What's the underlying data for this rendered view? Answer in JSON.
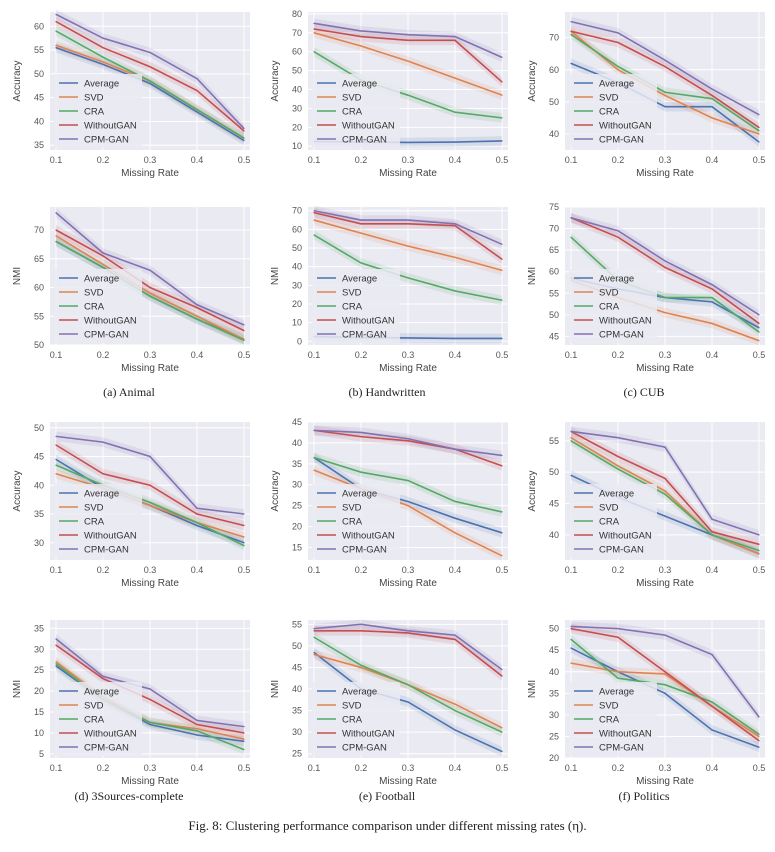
{
  "caption": "Fig. 8: Clustering performance comparison under different missing rates (η).",
  "colors": {
    "Average": "#4c72b0",
    "SVD": "#dd8452",
    "CRA": "#55a868",
    "WithoutGAN": "#c44e52",
    "CPM-GAN": "#8172b3",
    "plot_bg": "#eaeaf2"
  },
  "subcaptions": [
    "(a) Animal",
    "(b) Handwritten",
    "(c) CUB",
    "(d) 3Sources-complete",
    "(e) Football",
    "(f) Politics"
  ],
  "chart_data": [
    {
      "type": "line",
      "dataset": "Animal",
      "metric": "Accuracy",
      "xlabel": "Missing Rate",
      "ylabel": "Accuracy",
      "x": [
        0.1,
        0.2,
        0.3,
        0.4,
        0.5
      ],
      "xticks": [
        "0.1",
        "0.2",
        "0.3",
        "0.4",
        "0.5"
      ],
      "ylim": [
        34,
        63
      ],
      "yticks": [
        35,
        40,
        45,
        50,
        55,
        60
      ],
      "legend": "lower-left",
      "grid": true,
      "series": [
        {
          "name": "Average",
          "values": [
            55.5,
            52,
            48,
            42,
            36
          ]
        },
        {
          "name": "SVD",
          "values": [
            56,
            52.5,
            48.5,
            42.5,
            36.5
          ]
        },
        {
          "name": "CRA",
          "values": [
            59,
            53.5,
            48.5,
            42.5,
            36.5
          ]
        },
        {
          "name": "WithoutGAN",
          "values": [
            61,
            55.5,
            51.5,
            46.5,
            38
          ]
        },
        {
          "name": "CPM-GAN",
          "values": [
            62.5,
            57.5,
            54.5,
            49,
            38.5
          ]
        }
      ]
    },
    {
      "type": "line",
      "dataset": "Handwritten",
      "metric": "Accuracy",
      "xlabel": "Missing Rate",
      "ylabel": "Accuracy",
      "x": [
        0.1,
        0.2,
        0.3,
        0.4,
        0.5
      ],
      "xticks": [
        "0.1",
        "0.2",
        "0.3",
        "0.4",
        "0.5"
      ],
      "ylim": [
        8,
        81
      ],
      "yticks": [
        10,
        20,
        30,
        40,
        50,
        60,
        70,
        80
      ],
      "legend": "lower-left",
      "grid": true,
      "series": [
        {
          "name": "Average",
          "values": [
            12.5,
            12.2,
            12,
            12.2,
            12.8
          ]
        },
        {
          "name": "SVD",
          "values": [
            70,
            63,
            55,
            46,
            37
          ]
        },
        {
          "name": "CRA",
          "values": [
            60,
            45,
            37,
            28,
            25
          ]
        },
        {
          "name": "WithoutGAN",
          "values": [
            72,
            68,
            66,
            66,
            44
          ]
        },
        {
          "name": "CPM-GAN",
          "values": [
            75,
            71,
            69,
            68,
            57
          ]
        }
      ]
    },
    {
      "type": "line",
      "dataset": "CUB",
      "metric": "Accuracy",
      "xlabel": "Missing Rate",
      "ylabel": "Accuracy",
      "x": [
        0.1,
        0.2,
        0.3,
        0.4,
        0.5
      ],
      "xticks": [
        "0.1",
        "0.2",
        "0.3",
        "0.4",
        "0.5"
      ],
      "ylim": [
        35,
        78
      ],
      "yticks": [
        40,
        50,
        60,
        70
      ],
      "legend": "lower-left",
      "grid": true,
      "series": [
        {
          "name": "Average",
          "values": [
            62,
            56,
            48.5,
            48.5,
            37.5
          ]
        },
        {
          "name": "SVD",
          "values": [
            72,
            60,
            52,
            45,
            40
          ]
        },
        {
          "name": "CRA",
          "values": [
            71,
            61,
            53,
            51,
            41
          ]
        },
        {
          "name": "WithoutGAN",
          "values": [
            72,
            68.5,
            61,
            52,
            42
          ]
        },
        {
          "name": "CPM-GAN",
          "values": [
            75,
            71.5,
            63,
            54,
            46
          ]
        }
      ]
    },
    {
      "type": "line",
      "dataset": "Animal",
      "metric": "NMI",
      "xlabel": "Missing Rate",
      "ylabel": "NMI",
      "x": [
        0.1,
        0.2,
        0.3,
        0.4,
        0.5
      ],
      "xticks": [
        "0.1",
        "0.2",
        "0.3",
        "0.4",
        "0.5"
      ],
      "ylim": [
        50,
        74
      ],
      "yticks": [
        50,
        55,
        60,
        65,
        70
      ],
      "legend": "lower-left",
      "grid": true,
      "series": [
        {
          "name": "Average",
          "values": [
            68,
            63.5,
            58.5,
            54.5,
            51
          ]
        },
        {
          "name": "SVD",
          "values": [
            69,
            64,
            59,
            55,
            51
          ]
        },
        {
          "name": "CRA",
          "values": [
            68,
            63.5,
            58.5,
            54.5,
            50.8
          ]
        },
        {
          "name": "WithoutGAN",
          "values": [
            70,
            65.5,
            60,
            56.5,
            52.5
          ]
        },
        {
          "name": "CPM-GAN",
          "values": [
            73,
            66,
            63,
            57,
            53.5
          ]
        }
      ]
    },
    {
      "type": "line",
      "dataset": "Handwritten",
      "metric": "NMI",
      "xlabel": "Missing Rate",
      "ylabel": "NMI",
      "x": [
        0.1,
        0.2,
        0.3,
        0.4,
        0.5
      ],
      "xticks": [
        "0.1",
        "0.2",
        "0.3",
        "0.4",
        "0.5"
      ],
      "ylim": [
        -2,
        72
      ],
      "yticks": [
        0,
        10,
        20,
        30,
        40,
        50,
        60,
        70
      ],
      "legend": "lower-left",
      "grid": true,
      "series": [
        {
          "name": "Average",
          "values": [
            2.5,
            2,
            1.8,
            1.5,
            1.5
          ]
        },
        {
          "name": "SVD",
          "values": [
            65,
            58,
            51,
            45,
            38
          ]
        },
        {
          "name": "CRA",
          "values": [
            57,
            42,
            34,
            27,
            22
          ]
        },
        {
          "name": "WithoutGAN",
          "values": [
            69,
            63,
            63,
            62,
            44
          ]
        },
        {
          "name": "CPM-GAN",
          "values": [
            70,
            65,
            65,
            63,
            52
          ]
        }
      ]
    },
    {
      "type": "line",
      "dataset": "CUB",
      "metric": "NMI",
      "xlabel": "Missing Rate",
      "ylabel": "NMI",
      "x": [
        0.1,
        0.2,
        0.3,
        0.4,
        0.5
      ],
      "xticks": [
        "0.1",
        "0.2",
        "0.3",
        "0.4",
        "0.5"
      ],
      "ylim": [
        43,
        75
      ],
      "yticks": [
        45,
        50,
        55,
        60,
        65,
        70,
        75
      ],
      "legend": "lower-left",
      "grid": true,
      "series": [
        {
          "name": "Average",
          "values": [
            58.5,
            56,
            54,
            53,
            47
          ]
        },
        {
          "name": "SVD",
          "values": [
            58,
            54,
            50.5,
            48,
            44
          ]
        },
        {
          "name": "CRA",
          "values": [
            68,
            58,
            54,
            54,
            46
          ]
        },
        {
          "name": "WithoutGAN",
          "values": [
            72.5,
            68,
            61,
            56,
            48
          ]
        },
        {
          "name": "CPM-GAN",
          "values": [
            72.5,
            69.5,
            62.5,
            57,
            50
          ]
        }
      ]
    },
    {
      "type": "line",
      "dataset": "3Sources-complete",
      "metric": "Accuracy",
      "xlabel": "Missing Rate",
      "ylabel": "Accuracy",
      "x": [
        0.1,
        0.2,
        0.3,
        0.4,
        0.5
      ],
      "xticks": [
        "0.1",
        "0.2",
        "0.3",
        "0.4",
        "0.5"
      ],
      "ylim": [
        27,
        51
      ],
      "yticks": [
        30,
        35,
        40,
        45,
        50
      ],
      "legend": "lower-left",
      "grid": true,
      "series": [
        {
          "name": "Average",
          "values": [
            44.5,
            39.5,
            36.5,
            33,
            30
          ]
        },
        {
          "name": "SVD",
          "values": [
            42,
            39.5,
            36.5,
            33.5,
            31
          ]
        },
        {
          "name": "CRA",
          "values": [
            43.5,
            40,
            37,
            33.5,
            29.5
          ]
        },
        {
          "name": "WithoutGAN",
          "values": [
            47,
            42,
            40,
            35,
            33
          ]
        },
        {
          "name": "CPM-GAN",
          "values": [
            48.5,
            47.5,
            45,
            36,
            35
          ]
        }
      ]
    },
    {
      "type": "line",
      "dataset": "Football",
      "metric": "Accuracy",
      "xlabel": "Missing Rate",
      "ylabel": "Accuracy",
      "x": [
        0.1,
        0.2,
        0.3,
        0.4,
        0.5
      ],
      "xticks": [
        "0.1",
        "0.2",
        "0.3",
        "0.4",
        "0.5"
      ],
      "ylim": [
        12,
        45
      ],
      "yticks": [
        15,
        20,
        25,
        30,
        35,
        40,
        45
      ],
      "legend": "lower-left",
      "grid": true,
      "series": [
        {
          "name": "Average",
          "values": [
            36.5,
            29,
            26,
            22,
            18.5
          ]
        },
        {
          "name": "SVD",
          "values": [
            33.5,
            29,
            25,
            18.5,
            13
          ]
        },
        {
          "name": "CRA",
          "values": [
            36.5,
            33,
            31,
            26,
            23.5
          ]
        },
        {
          "name": "WithoutGAN",
          "values": [
            43,
            41.5,
            40.5,
            38.5,
            34.5
          ]
        },
        {
          "name": "CPM-GAN",
          "values": [
            43,
            42.5,
            41,
            38.5,
            37
          ]
        }
      ]
    },
    {
      "type": "line",
      "dataset": "Politics",
      "metric": "Accuracy",
      "xlabel": "Missing Rate",
      "ylabel": "Accuracy",
      "x": [
        0.1,
        0.2,
        0.3,
        0.4,
        0.5
      ],
      "xticks": [
        "0.1",
        "0.2",
        "0.3",
        "0.4",
        "0.5"
      ],
      "ylim": [
        36,
        58
      ],
      "yticks": [
        40,
        45,
        50,
        55
      ],
      "legend": "lower-left",
      "grid": true,
      "series": [
        {
          "name": "Average",
          "values": [
            49.5,
            46,
            43,
            40,
            37
          ]
        },
        {
          "name": "SVD",
          "values": [
            55.5,
            51,
            47,
            40,
            37
          ]
        },
        {
          "name": "CRA",
          "values": [
            55,
            50.5,
            46.5,
            40,
            37.5
          ]
        },
        {
          "name": "WithoutGAN",
          "values": [
            56.5,
            52.5,
            49,
            40.5,
            38.5
          ]
        },
        {
          "name": "CPM-GAN",
          "values": [
            56.5,
            55.5,
            54,
            42.5,
            40
          ]
        }
      ]
    },
    {
      "type": "line",
      "dataset": "3Sources-complete",
      "metric": "NMI",
      "xlabel": "Missing Rate",
      "ylabel": "NMI",
      "x": [
        0.1,
        0.2,
        0.3,
        0.4,
        0.5
      ],
      "xticks": [
        "0.1",
        "0.2",
        "0.3",
        "0.4",
        "0.5"
      ],
      "ylim": [
        4,
        37
      ],
      "yticks": [
        5,
        10,
        15,
        20,
        25,
        30,
        35
      ],
      "legend": "lower-left",
      "grid": true,
      "series": [
        {
          "name": "Average",
          "values": [
            26,
            18,
            12,
            9.5,
            8
          ]
        },
        {
          "name": "SVD",
          "values": [
            27,
            18.5,
            12.5,
            11,
            8.5
          ]
        },
        {
          "name": "CRA",
          "values": [
            26.5,
            18,
            12.5,
            10.5,
            6
          ]
        },
        {
          "name": "WithoutGAN",
          "values": [
            31,
            23,
            18,
            12,
            10
          ]
        },
        {
          "name": "CPM-GAN",
          "values": [
            32.5,
            23.5,
            20.5,
            13,
            11.5
          ]
        }
      ]
    },
    {
      "type": "line",
      "dataset": "Football",
      "metric": "NMI",
      "xlabel": "Missing Rate",
      "ylabel": "NMI",
      "x": [
        0.1,
        0.2,
        0.3,
        0.4,
        0.5
      ],
      "xticks": [
        "0.1",
        "0.2",
        "0.3",
        "0.4",
        "0.5"
      ],
      "ylim": [
        24,
        56
      ],
      "yticks": [
        25,
        30,
        35,
        40,
        45,
        50,
        55
      ],
      "legend": "lower-left",
      "grid": true,
      "series": [
        {
          "name": "Average",
          "values": [
            48.5,
            40,
            37,
            30.5,
            25.5
          ]
        },
        {
          "name": "SVD",
          "values": [
            48,
            45,
            41,
            36.5,
            31
          ]
        },
        {
          "name": "CRA",
          "values": [
            52,
            45.5,
            41,
            35,
            30
          ]
        },
        {
          "name": "WithoutGAN",
          "values": [
            53.5,
            53.5,
            53,
            51.5,
            43
          ]
        },
        {
          "name": "CPM-GAN",
          "values": [
            54,
            55,
            53.5,
            52.5,
            44.5
          ]
        }
      ]
    },
    {
      "type": "line",
      "dataset": "Politics",
      "metric": "NMI",
      "xlabel": "Missing Rate",
      "ylabel": "NMI",
      "x": [
        0.1,
        0.2,
        0.3,
        0.4,
        0.5
      ],
      "xticks": [
        "0.1",
        "0.2",
        "0.3",
        "0.4",
        "0.5"
      ],
      "ylim": [
        20,
        52
      ],
      "yticks": [
        20,
        25,
        30,
        35,
        40,
        45,
        50
      ],
      "legend": "lower-left",
      "grid": true,
      "series": [
        {
          "name": "Average",
          "values": [
            45.5,
            40,
            35,
            26.5,
            22.5
          ]
        },
        {
          "name": "SVD",
          "values": [
            42,
            40,
            39.5,
            32,
            25
          ]
        },
        {
          "name": "CRA",
          "values": [
            47.5,
            38.5,
            37,
            33,
            25.5
          ]
        },
        {
          "name": "WithoutGAN",
          "values": [
            50,
            48,
            40,
            32,
            24
          ]
        },
        {
          "name": "CPM-GAN",
          "values": [
            50.5,
            50,
            48.5,
            44,
            29.5
          ]
        }
      ]
    }
  ]
}
